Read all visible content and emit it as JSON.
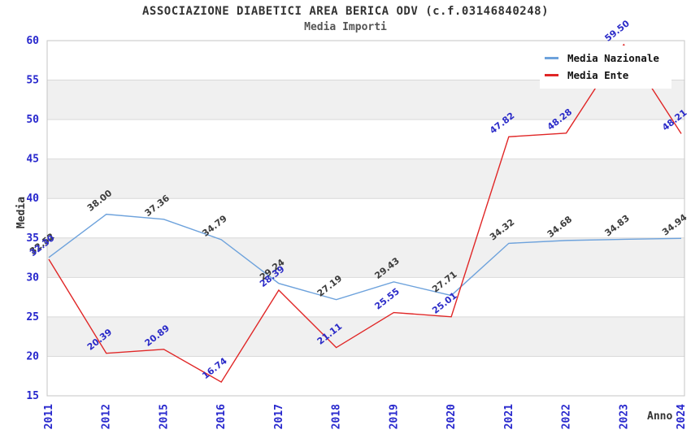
{
  "title": "ASSOCIAZIONE DIABETICI AREA BERICA ODV (c.f.03146840248)",
  "subtitle": "Media Importi",
  "chart_data": {
    "type": "line",
    "title": "ASSOCIAZIONE DIABETICI AREA BERICA ODV (c.f.03146840248)",
    "subtitle": "Media Importi",
    "xlabel": "Anno",
    "ylabel": "Media",
    "categories": [
      "2011",
      "2012",
      "2015",
      "2016",
      "2017",
      "2018",
      "2019",
      "2020",
      "2021",
      "2022",
      "2023",
      "2024"
    ],
    "series": [
      {
        "name": "Media Nazionale",
        "color": "#6da2dc",
        "label_color": "#3c3c3c",
        "values": [
          32.52,
          38.0,
          37.36,
          34.79,
          29.24,
          27.19,
          29.43,
          27.71,
          34.32,
          34.68,
          34.83,
          34.94
        ]
      },
      {
        "name": "Media Ente",
        "color": "#e02626",
        "label_color": "#2b2bc8",
        "values": [
          32.3,
          20.39,
          20.89,
          16.74,
          28.39,
          21.11,
          25.55,
          25.01,
          47.82,
          48.28,
          59.5,
          48.21
        ]
      }
    ],
    "ylim": [
      15,
      60
    ],
    "ytick_step": 5,
    "yticks": [
      "15",
      "20",
      "25",
      "30",
      "35",
      "40",
      "45",
      "50",
      "55",
      "60"
    ],
    "grid": true,
    "legend_position": "top-right",
    "band_colors": [
      "#ffffff",
      "#f0f0f0"
    ],
    "gridline_color": "#d9d9d9",
    "frame_color": "#c4c4c4",
    "tick_label_color": "#2727cd"
  }
}
